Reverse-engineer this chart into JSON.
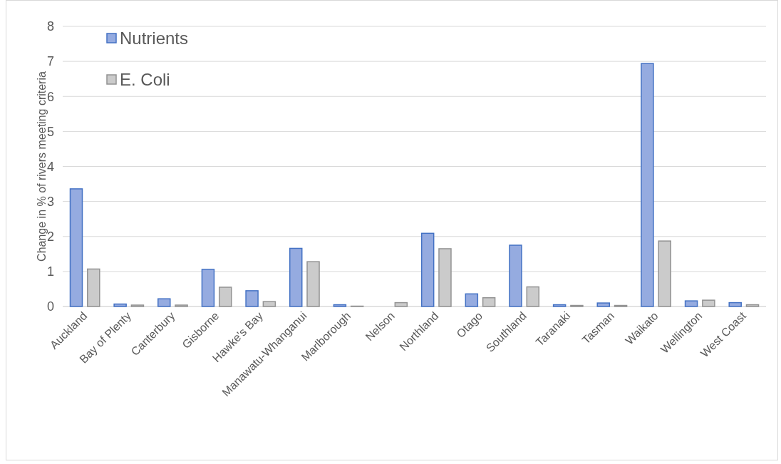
{
  "chart_data": {
    "type": "bar",
    "ylabel": "Change in % of rivers meeting criteria",
    "categories": [
      "Auckland",
      "Bay of Plenty",
      "Canterbury",
      "Gisborne",
      "Hawke's Bay",
      "Manawatu-Whanganui",
      "Marlborough",
      "Nelson",
      "Northland",
      "Otago",
      "Southland",
      "Taranaki",
      "Tasman",
      "Waikato",
      "Wellington",
      "West Coast"
    ],
    "series": [
      {
        "name": "Nutrients",
        "color": "#95abe0",
        "values": [
          3.36,
          0.07,
          0.22,
          1.06,
          0.45,
          1.66,
          0.05,
          0,
          2.09,
          0.36,
          1.75,
          0.05,
          0.1,
          6.94,
          0.16,
          0.11
        ]
      },
      {
        "name": "E. Coli",
        "color": "#cbcbcb",
        "values": [
          1.07,
          0.04,
          0.04,
          0.55,
          0.14,
          1.28,
          0.01,
          0.11,
          1.65,
          0.25,
          0.56,
          0.03,
          0.03,
          1.87,
          0.18,
          0.05
        ]
      }
    ],
    "ylim": [
      0,
      8
    ],
    "yticks": [
      0,
      1,
      2,
      3,
      4,
      5,
      6,
      7,
      8
    ],
    "grid": "y",
    "legend": "top left"
  }
}
